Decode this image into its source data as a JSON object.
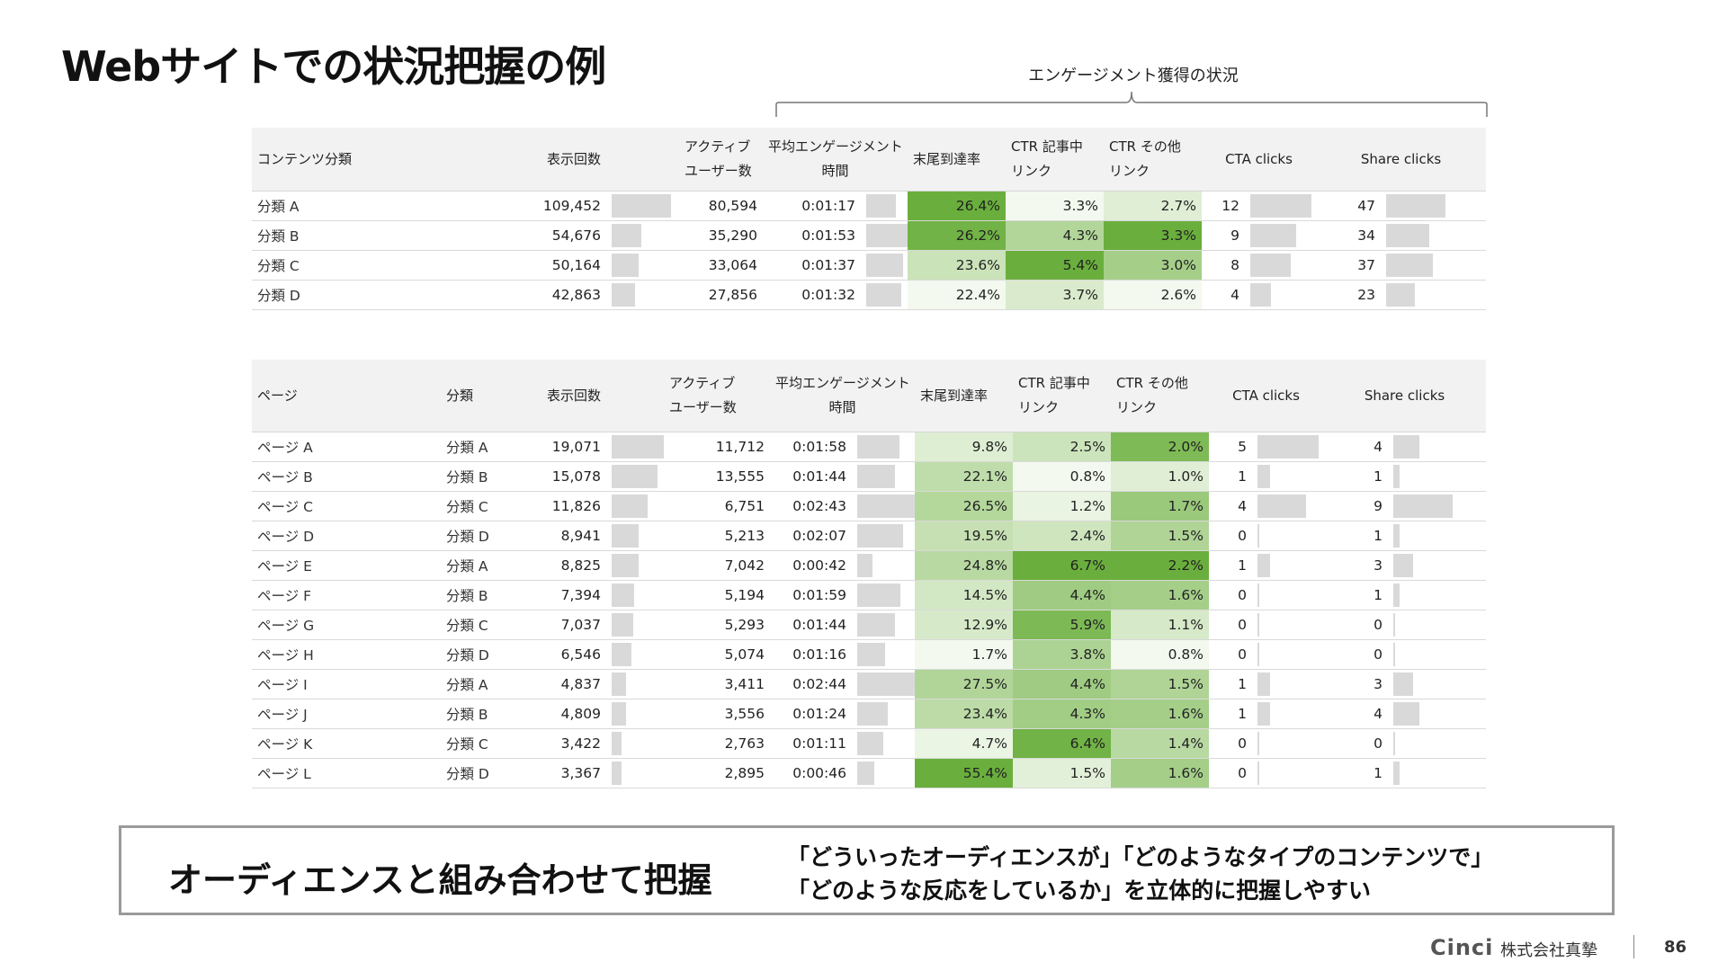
{
  "title": "Webサイトでの状況把握の例",
  "bracket_label": "エンゲージメント獲得の状況",
  "colors": {
    "bar": "#d9d9d9",
    "header_bg": "#f2f2f2",
    "green_max": "#6aaf3d",
    "green_min": "#f3f9ee"
  },
  "table1": {
    "headers": [
      "コンテンツ分類",
      "表示回数",
      "アクティブ\nユーザー数",
      "平均エンゲージメント\n時間",
      "末尾到達率",
      "CTR 記事中\nリンク",
      "CTR その他\nリンク",
      "CTA clicks",
      "Share clicks"
    ],
    "rows": [
      {
        "name": "分類 A",
        "views": "109,452",
        "users": "80,594",
        "time": "0:01:17",
        "completion": "26.4%",
        "ctr_in": "3.3%",
        "ctr_other": "2.7%",
        "cta": "12",
        "share": "47"
      },
      {
        "name": "分類 B",
        "views": "54,676",
        "users": "35,290",
        "time": "0:01:53",
        "completion": "26.2%",
        "ctr_in": "4.3%",
        "ctr_other": "3.3%",
        "cta": "9",
        "share": "34"
      },
      {
        "name": "分類 C",
        "views": "50,164",
        "users": "33,064",
        "time": "0:01:37",
        "completion": "23.6%",
        "ctr_in": "5.4%",
        "ctr_other": "3.0%",
        "cta": "8",
        "share": "37"
      },
      {
        "name": "分類 D",
        "views": "42,863",
        "users": "27,856",
        "time": "0:01:32",
        "completion": "22.4%",
        "ctr_in": "3.7%",
        "ctr_other": "2.6%",
        "cta": "4",
        "share": "23"
      }
    ]
  },
  "table2": {
    "headers": [
      "ページ",
      "分類",
      "表示回数",
      "アクティブ\nユーザー数",
      "平均エンゲージメント\n時間",
      "末尾到達率",
      "CTR 記事中\nリンク",
      "CTR その他\nリンク",
      "CTA clicks",
      "Share clicks"
    ],
    "rows": [
      {
        "page": "ページ A",
        "category": "分類 A",
        "views": "19,071",
        "users": "11,712",
        "time": "0:01:58",
        "completion": "9.8%",
        "ctr_in": "2.5%",
        "ctr_other": "2.0%",
        "cta": "5",
        "share": "4"
      },
      {
        "page": "ページ B",
        "category": "分類 B",
        "views": "15,078",
        "users": "13,555",
        "time": "0:01:44",
        "completion": "22.1%",
        "ctr_in": "0.8%",
        "ctr_other": "1.0%",
        "cta": "1",
        "share": "1"
      },
      {
        "page": "ページ C",
        "category": "分類 C",
        "views": "11,826",
        "users": "6,751",
        "time": "0:02:43",
        "completion": "26.5%",
        "ctr_in": "1.2%",
        "ctr_other": "1.7%",
        "cta": "4",
        "share": "9"
      },
      {
        "page": "ページ D",
        "category": "分類 D",
        "views": "8,941",
        "users": "5,213",
        "time": "0:02:07",
        "completion": "19.5%",
        "ctr_in": "2.4%",
        "ctr_other": "1.5%",
        "cta": "0",
        "share": "1"
      },
      {
        "page": "ページ E",
        "category": "分類 A",
        "views": "8,825",
        "users": "7,042",
        "time": "0:00:42",
        "completion": "24.8%",
        "ctr_in": "6.7%",
        "ctr_other": "2.2%",
        "cta": "1",
        "share": "3"
      },
      {
        "page": "ページ F",
        "category": "分類 B",
        "views": "7,394",
        "users": "5,194",
        "time": "0:01:59",
        "completion": "14.5%",
        "ctr_in": "4.4%",
        "ctr_other": "1.6%",
        "cta": "0",
        "share": "1"
      },
      {
        "page": "ページ G",
        "category": "分類 C",
        "views": "7,037",
        "users": "5,293",
        "time": "0:01:44",
        "completion": "12.9%",
        "ctr_in": "5.9%",
        "ctr_other": "1.1%",
        "cta": "0",
        "share": "0"
      },
      {
        "page": "ページ H",
        "category": "分類 D",
        "views": "6,546",
        "users": "5,074",
        "time": "0:01:16",
        "completion": "1.7%",
        "ctr_in": "3.8%",
        "ctr_other": "0.8%",
        "cta": "0",
        "share": "0"
      },
      {
        "page": "ページ I",
        "category": "分類 A",
        "views": "4,837",
        "users": "3,411",
        "time": "0:02:44",
        "completion": "27.5%",
        "ctr_in": "4.4%",
        "ctr_other": "1.5%",
        "cta": "1",
        "share": "3"
      },
      {
        "page": "ページ J",
        "category": "分類 B",
        "views": "4,809",
        "users": "3,556",
        "time": "0:01:24",
        "completion": "23.4%",
        "ctr_in": "4.3%",
        "ctr_other": "1.6%",
        "cta": "1",
        "share": "4"
      },
      {
        "page": "ページ K",
        "category": "分類 C",
        "views": "3,422",
        "users": "2,763",
        "time": "0:01:11",
        "completion": "4.7%",
        "ctr_in": "6.4%",
        "ctr_other": "1.4%",
        "cta": "0",
        "share": "0"
      },
      {
        "page": "ページ L",
        "category": "分類 D",
        "views": "3,367",
        "users": "2,895",
        "time": "0:00:46",
        "completion": "55.4%",
        "ctr_in": "1.5%",
        "ctr_other": "1.6%",
        "cta": "0",
        "share": "1"
      }
    ]
  },
  "note": {
    "main": "オーディエンスと組み合わせて把握",
    "line1": "「どういったオーディエンスが」「どのようなタイプのコンテンツで」",
    "line2": "「どのような反応をしているか」を立体的に把握しやすい"
  },
  "footer": {
    "logo": "Cinci",
    "company": "株式会社真摯",
    "page_number": "86"
  }
}
